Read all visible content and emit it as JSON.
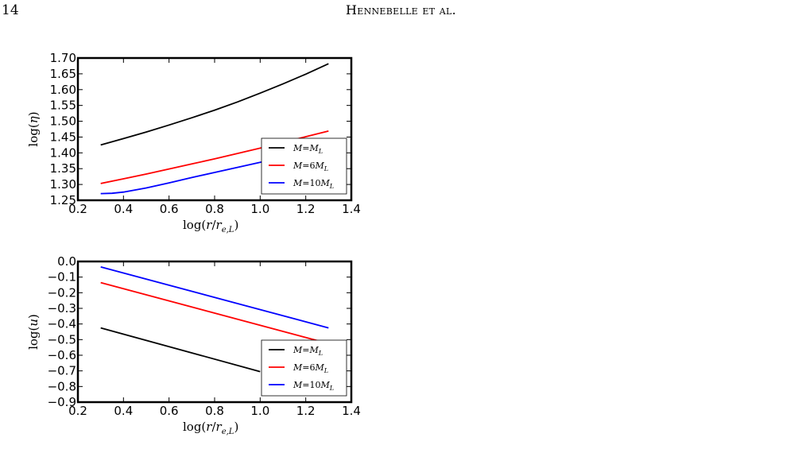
{
  "header": {
    "page_number": "14",
    "running_head": "Hennebelle et al."
  },
  "chart_data": [
    {
      "type": "line",
      "xlabel": "log(r/r_{e,L})",
      "ylabel": "log(η)",
      "xlim": [
        0.2,
        1.4
      ],
      "ylim": [
        1.25,
        1.7
      ],
      "xticks": [
        "0.2",
        "0.4",
        "0.6",
        "0.8",
        "1.0",
        "1.2",
        "1.4"
      ],
      "yticks": [
        "1.25",
        "1.30",
        "1.35",
        "1.40",
        "1.45",
        "1.50",
        "1.55",
        "1.60",
        "1.65",
        "1.70"
      ],
      "grid": false,
      "legend_position": "lower-right",
      "series": [
        {
          "name": "M=M_L",
          "color": "#000000",
          "x": [
            0.3,
            0.4,
            0.5,
            0.6,
            0.7,
            0.8,
            0.9,
            1.0,
            1.1,
            1.2,
            1.3
          ],
          "y": [
            1.425,
            1.445,
            1.466,
            1.488,
            1.511,
            1.535,
            1.561,
            1.589,
            1.618,
            1.649,
            1.682
          ]
        },
        {
          "name": "M=6M_L",
          "color": "#ff0000",
          "x": [
            0.3,
            0.4,
            0.5,
            0.6,
            0.7,
            0.8,
            0.9,
            1.0,
            1.1,
            1.2,
            1.3
          ],
          "y": [
            1.303,
            1.318,
            1.333,
            1.349,
            1.365,
            1.381,
            1.398,
            1.415,
            1.433,
            1.451,
            1.469
          ]
        },
        {
          "name": "M=10M_L",
          "color": "#0000ff",
          "x": [
            0.3,
            0.35,
            0.4,
            0.5,
            0.6,
            0.7,
            0.8,
            0.9,
            1.0,
            1.1
          ],
          "y": [
            1.271,
            1.272,
            1.276,
            1.289,
            1.305,
            1.322,
            1.338,
            1.354,
            1.37,
            1.386
          ]
        }
      ]
    },
    {
      "type": "line",
      "xlabel": "log(r/r_{e,L})",
      "ylabel": "log(u)",
      "xlim": [
        0.2,
        1.4
      ],
      "ylim": [
        -0.9,
        0.0
      ],
      "xticks": [
        "0.2",
        "0.4",
        "0.6",
        "0.8",
        "1.0",
        "1.2",
        "1.4"
      ],
      "yticks": [
        "0.0",
        "−0.1",
        "−0.2",
        "−0.3",
        "−0.4",
        "−0.5",
        "−0.6",
        "−0.7",
        "−0.8",
        "−0.9"
      ],
      "grid": false,
      "legend_position": "lower-right",
      "series": [
        {
          "name": "M=M_L",
          "color": "#000000",
          "x": [
            0.3,
            1.0
          ],
          "y": [
            -0.425,
            -0.705
          ]
        },
        {
          "name": "M=6M_L",
          "color": "#ff0000",
          "x": [
            0.3,
            1.3
          ],
          "y": [
            -0.135,
            -0.525
          ]
        },
        {
          "name": "M=10M_L",
          "color": "#0000ff",
          "x": [
            0.3,
            1.3
          ],
          "y": [
            -0.035,
            -0.425
          ]
        }
      ]
    }
  ]
}
